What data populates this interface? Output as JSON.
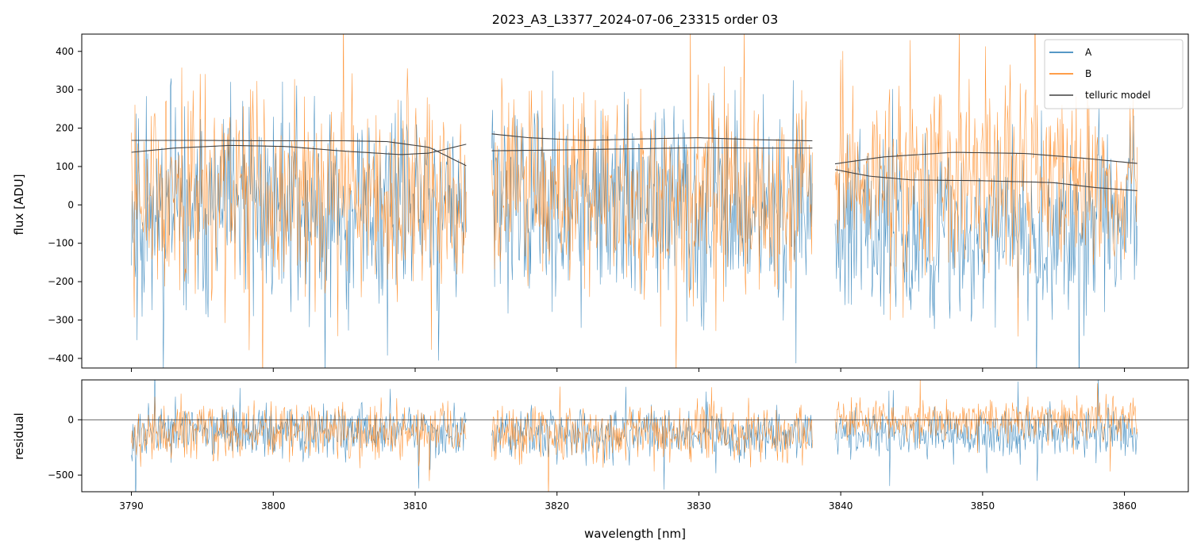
{
  "chart_data": [
    {
      "type": "line",
      "title": "2023_A3_L3377_2024-07-06_23315  order 03",
      "xlabel": "",
      "ylabel": "flux [ADU]",
      "xlim": [
        3786.5,
        3864.5
      ],
      "ylim": [
        -425,
        445
      ],
      "yticks": [
        400,
        300,
        200,
        100,
        0,
        -100,
        -200,
        -300,
        -400
      ],
      "xticks": [
        3790,
        3800,
        3810,
        3820,
        3830,
        3840,
        3850,
        3860
      ],
      "show_xtick_labels": false,
      "grid": false,
      "legend_position": "top-right",
      "segments": [
        [
          3790.0,
          3813.6
        ],
        [
          3815.4,
          3838.0
        ],
        [
          3839.6,
          3860.9
        ]
      ],
      "series": [
        {
          "name": "A",
          "color": "#1f77b4",
          "kind": "noisy",
          "typical_range": [
            [
              -350,
              330
            ],
            [
              -330,
              330
            ],
            [
              -380,
              230
            ]
          ],
          "sample_points": [
            [
              3790.0,
              10
            ],
            [
              3795.0,
              -40
            ],
            [
              3800.0,
              20
            ],
            [
              3805.0,
              -30
            ],
            [
              3810.0,
              0
            ],
            [
              3813.6,
              -20
            ],
            [
              3815.4,
              10
            ],
            [
              3820.0,
              -20
            ],
            [
              3825.0,
              0
            ],
            [
              3830.0,
              -10
            ],
            [
              3835.0,
              -30
            ],
            [
              3838.0,
              0
            ],
            [
              3839.6,
              -40
            ],
            [
              3845.0,
              -60
            ],
            [
              3850.0,
              -70
            ],
            [
              3855.0,
              -60
            ],
            [
              3860.9,
              -40
            ]
          ]
        },
        {
          "name": "B",
          "color": "#ff7f0e",
          "kind": "noisy",
          "typical_range": [
            [
              -300,
              380
            ],
            [
              -300,
              380
            ],
            [
              -220,
              380
            ]
          ],
          "sample_points": [
            [
              3790.0,
              30
            ],
            [
              3795.0,
              10
            ],
            [
              3800.0,
              40
            ],
            [
              3805.0,
              0
            ],
            [
              3810.0,
              20
            ],
            [
              3813.6,
              10
            ],
            [
              3815.4,
              40
            ],
            [
              3820.0,
              10
            ],
            [
              3825.0,
              30
            ],
            [
              3830.0,
              20
            ],
            [
              3835.0,
              0
            ],
            [
              3838.0,
              20
            ],
            [
              3839.6,
              50
            ],
            [
              3845.0,
              60
            ],
            [
              3850.0,
              70
            ],
            [
              3855.0,
              60
            ],
            [
              3860.9,
              50
            ]
          ]
        },
        {
          "name": "telluric model",
          "color": "#404040",
          "kind": "smooth",
          "curves": [
            [
              [
                3790.0,
                168
              ],
              [
                3795.0,
                168
              ],
              [
                3800.0,
                167
              ],
              [
                3805.0,
                167
              ],
              [
                3808.0,
                165
              ],
              [
                3811.0,
                150
              ],
              [
                3813.6,
                102
              ]
            ],
            [
              [
                3790.0,
                137
              ],
              [
                3793.0,
                148
              ],
              [
                3797.0,
                155
              ],
              [
                3801.0,
                152
              ],
              [
                3805.0,
                140
              ],
              [
                3809.0,
                131
              ],
              [
                3811.0,
                135
              ],
              [
                3813.6,
                158
              ]
            ],
            [
              [
                3815.4,
                185
              ],
              [
                3818.0,
                175
              ],
              [
                3822.0,
                168
              ],
              [
                3826.0,
                172
              ],
              [
                3830.0,
                175
              ],
              [
                3834.0,
                170
              ],
              [
                3838.0,
                167
              ]
            ],
            [
              [
                3815.4,
                141
              ],
              [
                3820.0,
                143
              ],
              [
                3825.0,
                146
              ],
              [
                3830.0,
                149
              ],
              [
                3835.0,
                148
              ],
              [
                3838.0,
                148
              ]
            ],
            [
              [
                3839.6,
                107
              ],
              [
                3843.0,
                125
              ],
              [
                3848.0,
                137
              ],
              [
                3853.0,
                134
              ],
              [
                3857.0,
                122
              ],
              [
                3860.9,
                108
              ]
            ],
            [
              [
                3839.6,
                92
              ],
              [
                3842.0,
                75
              ],
              [
                3845.0,
                65
              ],
              [
                3850.0,
                63
              ],
              [
                3855.0,
                58
              ],
              [
                3858.0,
                45
              ],
              [
                3860.9,
                37
              ]
            ]
          ]
        }
      ]
    },
    {
      "type": "line",
      "title": "",
      "xlabel": "wavelength [nm]",
      "ylabel": "residual",
      "xlim": [
        3786.5,
        3864.5
      ],
      "ylim": [
        -650,
        360
      ],
      "yticks": [
        0,
        -500
      ],
      "xticks": [
        3790,
        3800,
        3810,
        3820,
        3830,
        3840,
        3850,
        3860
      ],
      "show_xtick_labels": true,
      "grid": false,
      "zero_line": 0,
      "segments": [
        [
          3790.0,
          3813.6
        ],
        [
          3815.4,
          3838.0
        ],
        [
          3839.6,
          3860.9
        ]
      ],
      "series": [
        {
          "name": "A",
          "color": "#1f77b4",
          "kind": "noisy",
          "typical_range": [
            [
              -420,
              200
            ],
            [
              -420,
              150
            ],
            [
              -420,
              150
            ]
          ],
          "sample_points": [
            [
              3790.0,
              -110
            ],
            [
              3800.0,
              -120
            ],
            [
              3813.6,
              -110
            ],
            [
              3815.4,
              -110
            ],
            [
              3825.0,
              -120
            ],
            [
              3838.0,
              -120
            ],
            [
              3839.6,
              -90
            ],
            [
              3850.0,
              -130
            ],
            [
              3860.9,
              -100
            ]
          ]
        },
        {
          "name": "B",
          "color": "#ff7f0e",
          "kind": "noisy",
          "typical_range": [
            [
              -460,
              230
            ],
            [
              -440,
              220
            ],
            [
              -250,
              250
            ]
          ],
          "sample_points": [
            [
              3790.0,
              -110
            ],
            [
              3800.0,
              -120
            ],
            [
              3813.6,
              -110
            ],
            [
              3815.4,
              -110
            ],
            [
              3825.0,
              -120
            ],
            [
              3838.0,
              -120
            ],
            [
              3839.6,
              0
            ],
            [
              3850.0,
              -30
            ],
            [
              3860.9,
              -10
            ]
          ]
        }
      ]
    }
  ]
}
